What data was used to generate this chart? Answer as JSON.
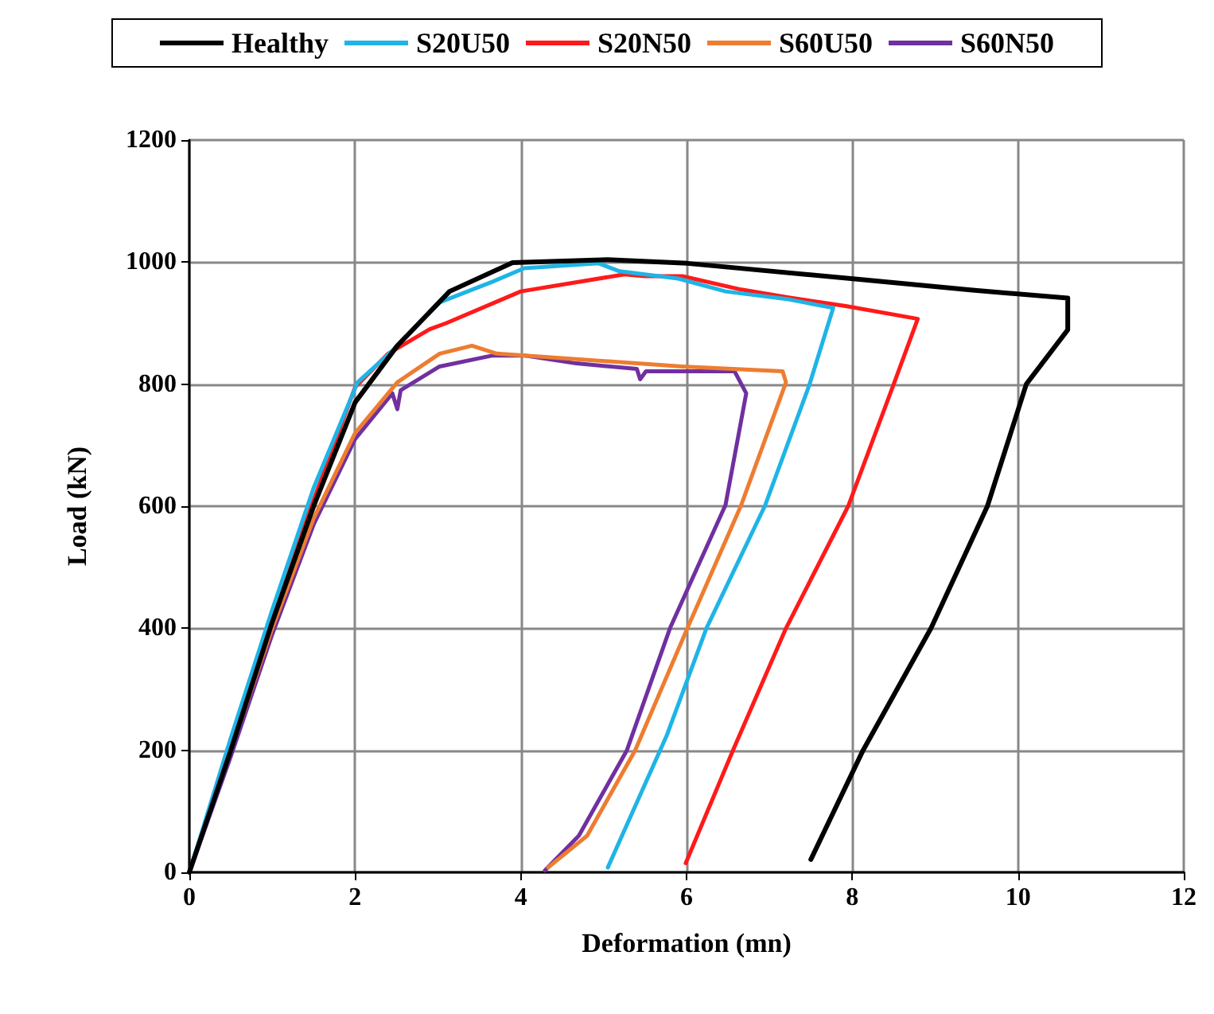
{
  "chart_data": {
    "type": "line",
    "xlabel": "Deformation (mn)",
    "ylabel": "Load (kN)",
    "xlim": [
      0,
      12
    ],
    "ylim": [
      0,
      1200
    ],
    "xticks": [
      0,
      2,
      4,
      6,
      8,
      10,
      12
    ],
    "yticks": [
      0,
      200,
      400,
      600,
      800,
      1000,
      1200
    ],
    "grid": true,
    "legend": "top",
    "marker": "none",
    "line_style": "solid",
    "series": [
      {
        "name": "Healthy",
        "color": "#000000",
        "x": [
          0,
          0.5,
          1,
          1.5,
          2,
          2.51,
          3.14,
          3.9,
          5.05,
          6.01,
          8.06,
          9.45,
          10.6,
          10.6,
          10.1,
          9.63,
          8.95,
          8.13,
          7.5
        ],
        "values": [
          0,
          200,
          410,
          600,
          770,
          863,
          952,
          999,
          1004,
          998,
          972,
          954,
          941,
          889,
          800,
          600,
          400,
          200,
          21
        ]
      },
      {
        "name": "S20U50",
        "color": "#1fb4e6",
        "x": [
          0,
          0.5,
          1,
          1.5,
          2.03,
          2.45,
          3.02,
          3.66,
          4.04,
          4.94,
          5.19,
          5.9,
          6.47,
          7.23,
          7.77,
          7.48,
          6.95,
          6.24,
          5.76,
          5.05
        ],
        "values": [
          0,
          220,
          430,
          630,
          803,
          855,
          934,
          968,
          990,
          998,
          985,
          973,
          952,
          939,
          925,
          798,
          602,
          400,
          224,
          8
        ]
      },
      {
        "name": "S20N50",
        "color": "#ff1a1a",
        "x": [
          0,
          0.5,
          1,
          1.5,
          2,
          2.4,
          2.9,
          3.1,
          4,
          5.25,
          5.5,
          5.95,
          6.66,
          7.23,
          7.92,
          8.79,
          8.5,
          7.95,
          7.2,
          6.56,
          5.99
        ],
        "values": [
          0,
          210,
          420,
          610,
          795,
          850,
          890,
          900,
          952,
          980,
          977,
          977,
          955,
          942,
          928,
          907,
          800,
          600,
          400,
          200,
          15
        ]
      },
      {
        "name": "S60U50",
        "color": "#ed7d31",
        "x": [
          0,
          0.5,
          1,
          1.5,
          2,
          2.51,
          3.02,
          3.41,
          3.71,
          5.95,
          7.16,
          7.2,
          6.66,
          6.01,
          5.38,
          4.8,
          4.33
        ],
        "values": [
          0,
          200,
          400,
          580,
          720,
          803,
          850,
          863,
          850,
          829,
          821,
          803,
          602,
          400,
          200,
          60,
          8
        ]
      },
      {
        "name": "S60N50",
        "color": "#7030a0",
        "x": [
          0,
          0.5,
          1,
          1.5,
          2,
          2.45,
          2.51,
          2.55,
          3.02,
          3.66,
          4.04,
          4.67,
          5.4,
          5.44,
          5.51,
          6.58,
          6.72,
          6.47,
          5.8,
          5.28,
          4.7,
          4.29
        ],
        "values": [
          0,
          190,
          390,
          570,
          710,
          785,
          759,
          790,
          829,
          847,
          847,
          834,
          825,
          808,
          821,
          821,
          785,
          602,
          400,
          200,
          60,
          3
        ]
      }
    ]
  }
}
